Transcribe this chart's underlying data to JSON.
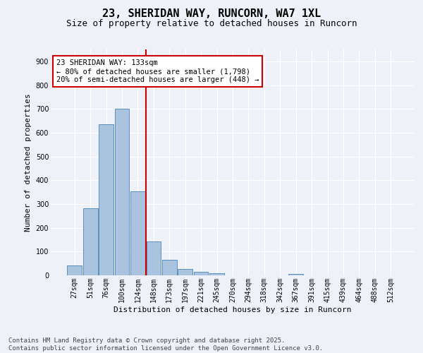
{
  "title": "23, SHERIDAN WAY, RUNCORN, WA7 1XL",
  "subtitle": "Size of property relative to detached houses in Runcorn",
  "xlabel": "Distribution of detached houses by size in Runcorn",
  "ylabel": "Number of detached properties",
  "bar_labels": [
    "27sqm",
    "51sqm",
    "76sqm",
    "100sqm",
    "124sqm",
    "148sqm",
    "173sqm",
    "197sqm",
    "221sqm",
    "245sqm",
    "270sqm",
    "294sqm",
    "318sqm",
    "342sqm",
    "367sqm",
    "391sqm",
    "415sqm",
    "439sqm",
    "464sqm",
    "488sqm",
    "512sqm"
  ],
  "bar_values": [
    42,
    283,
    635,
    700,
    352,
    143,
    65,
    28,
    15,
    10,
    0,
    0,
    0,
    0,
    5,
    0,
    0,
    0,
    0,
    0,
    0
  ],
  "bar_color": "#aac4e0",
  "bar_edge_color": "#5a8fc0",
  "background_color": "#eef2f8",
  "grid_color": "#ffffff",
  "vline_pos": 4.5,
  "vline_color": "#cc0000",
  "annotation_title": "23 SHERIDAN WAY: 133sqm",
  "annotation_line1": "← 80% of detached houses are smaller (1,798)",
  "annotation_line2": "20% of semi-detached houses are larger (448) →",
  "annotation_box_color": "#cc0000",
  "ylim": [
    0,
    950
  ],
  "yticks": [
    0,
    100,
    200,
    300,
    400,
    500,
    600,
    700,
    800,
    900
  ],
  "footer_line1": "Contains HM Land Registry data © Crown copyright and database right 2025.",
  "footer_line2": "Contains public sector information licensed under the Open Government Licence v3.0.",
  "title_fontsize": 11,
  "subtitle_fontsize": 9,
  "axis_label_fontsize": 8,
  "tick_fontsize": 7,
  "annotation_fontsize": 7.5,
  "footer_fontsize": 6.5
}
